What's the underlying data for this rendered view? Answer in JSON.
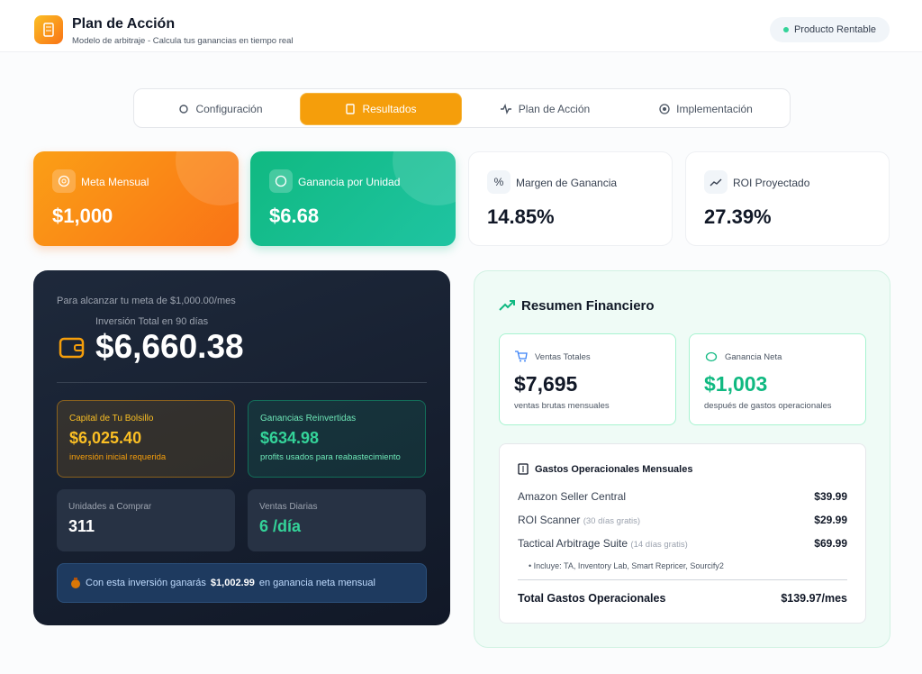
{
  "header": {
    "title": "Plan de Acción",
    "subtitle": "Modelo de arbitraje - Calcula tus ganancias en tiempo real",
    "badge": "Producto Rentable"
  },
  "tabs": [
    "Configuración",
    "Resultados",
    "Plan de Acción",
    "Implementación"
  ],
  "cards": [
    {
      "label": "Meta Mensual",
      "value": "$1,000"
    },
    {
      "label": "Ganancia por Unidad",
      "value": "$6.68"
    },
    {
      "label": "Margen de Ganancia",
      "value": "14.85%"
    },
    {
      "label": "ROI Proyectado",
      "value": "27.39%"
    }
  ],
  "investment": {
    "intro": "Para alcanzar tu meta de $1,000.00/mes",
    "label": "Inversión Total en 90 días",
    "amount": "$6,660.38",
    "boxes": [
      {
        "label": "Capital de Tu Bolsillo",
        "value": "$6,025.40",
        "note": "inversión inicial requerida"
      },
      {
        "label": "Ganancias Reinvertidas",
        "value": "$634.98",
        "note": "profits usados para reabastecimiento"
      },
      {
        "label": "Unidades a Comprar",
        "value": "311"
      },
      {
        "label": "Ventas Diarias",
        "value": "6 /día"
      }
    ],
    "note": {
      "before": "Con esta inversión ganarás",
      "amount": "$1,002.99",
      "after": "en ganancia neta mensual"
    }
  },
  "summary": {
    "title": "Resumen Financiero",
    "stats": [
      {
        "label": "Ventas Totales",
        "value": "$7,695",
        "note": "ventas brutas mensuales"
      },
      {
        "label": "Ganancia Neta",
        "value": "$1,003",
        "note": "después de gastos operacionales"
      }
    ],
    "expenses": {
      "title": "Gastos Operacionales Mensuales",
      "rows": [
        {
          "name": "Amazon Seller Central",
          "value": "$39.99"
        },
        {
          "name": "ROI Scanner",
          "tag": "(30 días gratis)",
          "value": "$29.99"
        },
        {
          "name": "Tactical Arbitrage Suite",
          "tag": "(14 días gratis)",
          "value": "$69.99"
        }
      ],
      "includes": "• Incluye: TA, Inventory Lab, Smart Repricer, Sourcify2",
      "total_label": "Total Gastos Operacionales",
      "total_value": "$139.97/mes"
    }
  }
}
